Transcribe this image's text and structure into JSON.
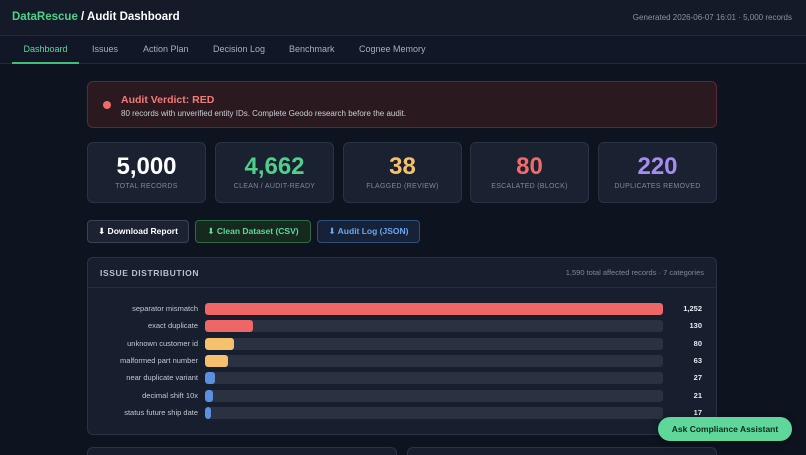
{
  "header": {
    "brand": "DataRescue",
    "title_sep": " / ",
    "title": "Audit Dashboard",
    "generated": "Generated 2026-06-07 16:01 · 5,000 records"
  },
  "tabs": [
    {
      "label": "Dashboard",
      "active": true
    },
    {
      "label": "Issues"
    },
    {
      "label": "Action Plan"
    },
    {
      "label": "Decision Log"
    },
    {
      "label": "Benchmark"
    },
    {
      "label": "Cognee Memory"
    }
  ],
  "verdict": {
    "title": "Audit Verdict: RED",
    "subtitle": "80 records with unverified entity IDs. Complete Geodo research before the audit.",
    "color": "#f26b6b"
  },
  "stats": [
    {
      "value": "5,000",
      "label": "TOTAL RECORDS",
      "color": "#ffffff"
    },
    {
      "value": "4,662",
      "label": "CLEAN / AUDIT-READY",
      "color": "#4fd08a"
    },
    {
      "value": "38",
      "label": "FLAGGED (REVIEW)",
      "color": "#f5c16c"
    },
    {
      "value": "80",
      "label": "ESCALATED (BLOCK)",
      "color": "#f26b6b"
    },
    {
      "value": "220",
      "label": "DUPLICATES REMOVED",
      "color": "#a58cf0"
    }
  ],
  "actions": {
    "download": "⬇ Download Report",
    "csv": "⬇ Clean Dataset (CSV)",
    "json": "⬇ Audit Log (JSON)"
  },
  "distribution": {
    "title": "ISSUE DISTRIBUTION",
    "meta": "1,590 total affected records · 7 categories",
    "max": 1252,
    "items": [
      {
        "label": "separator mismatch",
        "value": 1252,
        "display": "1,252",
        "color": "#ef6666"
      },
      {
        "label": "exact duplicate",
        "value": 130,
        "display": "130",
        "color": "#ef6666"
      },
      {
        "label": "unknown customer id",
        "value": 80,
        "display": "80",
        "color": "#f5c16c"
      },
      {
        "label": "malformed part number",
        "value": 63,
        "display": "63",
        "color": "#f5c16c"
      },
      {
        "label": "near duplicate variant",
        "value": 27,
        "display": "27",
        "color": "#5b8fe0"
      },
      {
        "label": "decimal shift 10x",
        "value": 21,
        "display": "21",
        "color": "#5b8fe0"
      },
      {
        "label": "status future ship date",
        "value": 17,
        "display": "17",
        "color": "#5b8fe0"
      }
    ]
  },
  "assistant": {
    "label": "Ask Compliance Assistant"
  }
}
